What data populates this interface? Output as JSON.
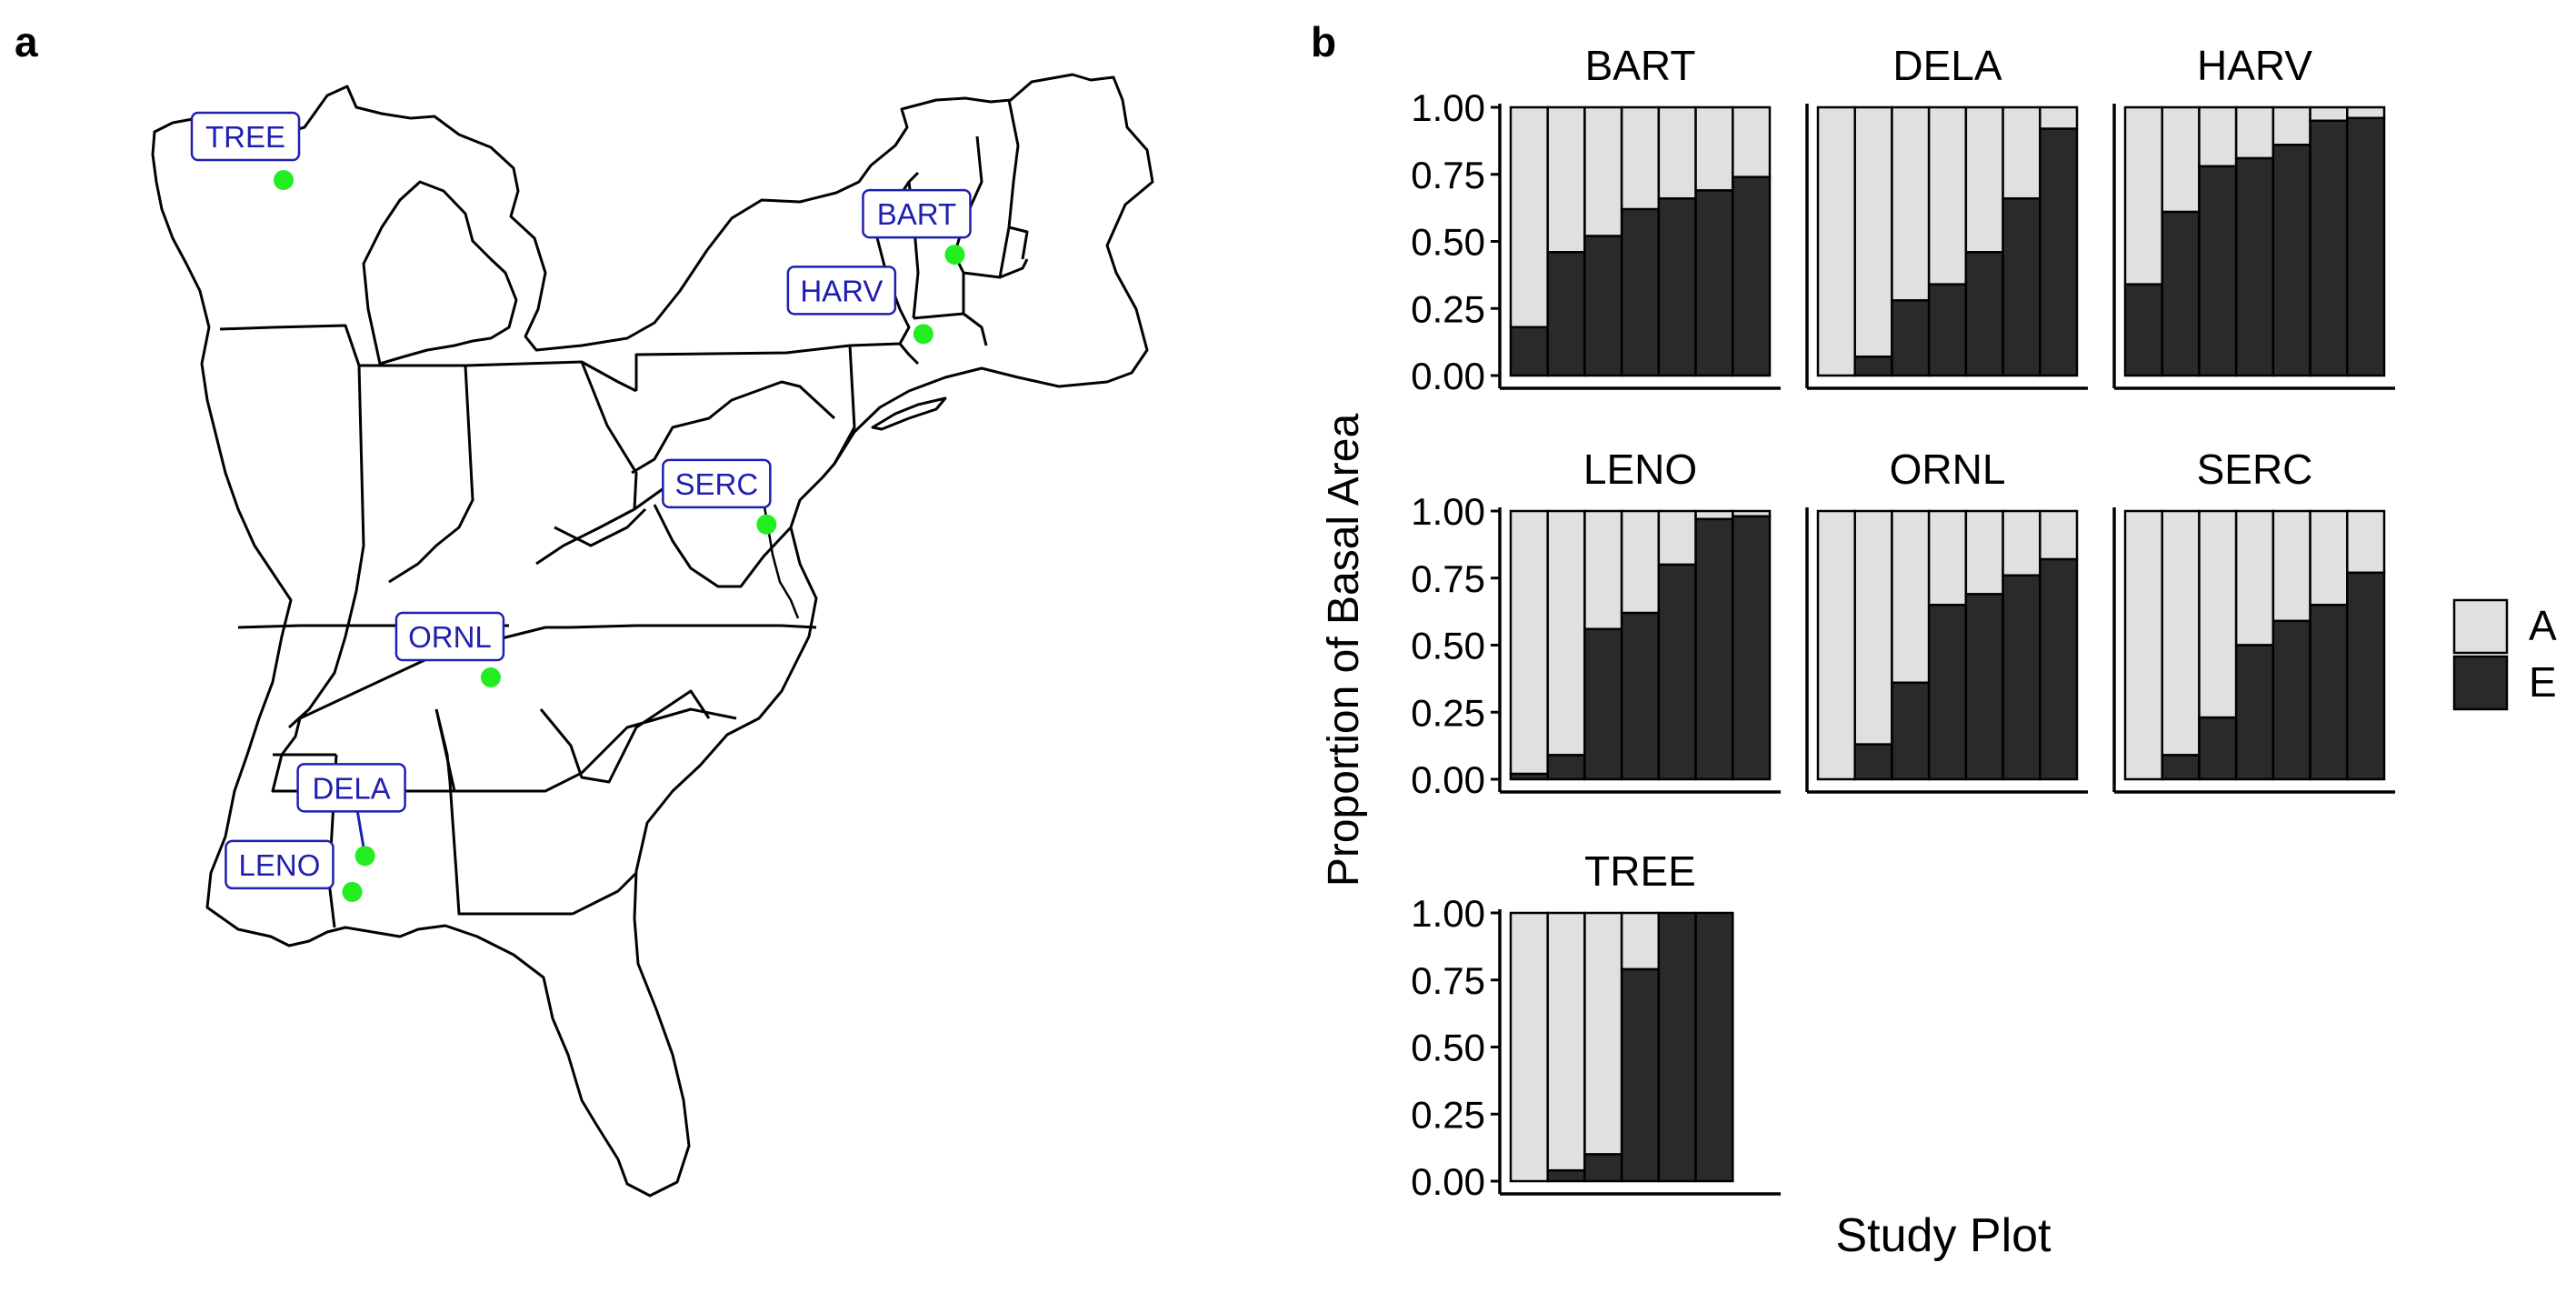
{
  "panel_a": {
    "label": "a",
    "sites": [
      {
        "name": "TREE",
        "lon": -90.08,
        "lat": 45.49
      },
      {
        "name": "BART",
        "lon": -71.29,
        "lat": 44.06
      },
      {
        "name": "HARV",
        "lon": -72.17,
        "lat": 42.54
      },
      {
        "name": "SERC",
        "lon": -76.56,
        "lat": 38.89
      },
      {
        "name": "ORNL",
        "lon": -84.28,
        "lat": 35.96
      },
      {
        "name": "DELA",
        "lon": -87.8,
        "lat": 32.54
      },
      {
        "name": "LENO",
        "lon": -88.16,
        "lat": 31.85
      }
    ],
    "colors": {
      "site_point": "#22ee22",
      "label_text": "#1f1fb0",
      "label_border": "#1f1fb0",
      "map_line": "#000000"
    }
  },
  "panel_b": {
    "label": "b",
    "chart_data": {
      "type": "bar",
      "stacked": true,
      "xlabel": "Study Plot",
      "ylabel": "Proportion of Basal Area",
      "ylim": [
        0,
        1
      ],
      "yticks": [
        "0.00",
        "0.25",
        "0.50",
        "0.75",
        "1.00"
      ],
      "legend": {
        "position": "right",
        "entries": [
          {
            "key": "A",
            "color": "#e0e0e0"
          },
          {
            "key": "E",
            "color": "#2a2a2a"
          }
        ]
      },
      "facets": [
        {
          "name": "BART",
          "E": [
            0.18,
            0.46,
            0.52,
            0.62,
            0.66,
            0.69,
            0.74
          ]
        },
        {
          "name": "DELA",
          "E": [
            0.0,
            0.07,
            0.28,
            0.34,
            0.46,
            0.66,
            0.92
          ]
        },
        {
          "name": "HARV",
          "E": [
            0.34,
            0.61,
            0.78,
            0.81,
            0.86,
            0.95,
            0.96
          ]
        },
        {
          "name": "LENO",
          "E": [
            0.02,
            0.09,
            0.56,
            0.62,
            0.8,
            0.97,
            0.98
          ]
        },
        {
          "name": "ORNL",
          "E": [
            0.0,
            0.13,
            0.36,
            0.65,
            0.69,
            0.76,
            0.82
          ]
        },
        {
          "name": "SERC",
          "E": [
            0.0,
            0.09,
            0.23,
            0.5,
            0.59,
            0.65,
            0.77
          ]
        },
        {
          "name": "TREE",
          "E": [
            0.0,
            0.04,
            0.1,
            0.79,
            1.0,
            1.0
          ]
        }
      ]
    }
  }
}
